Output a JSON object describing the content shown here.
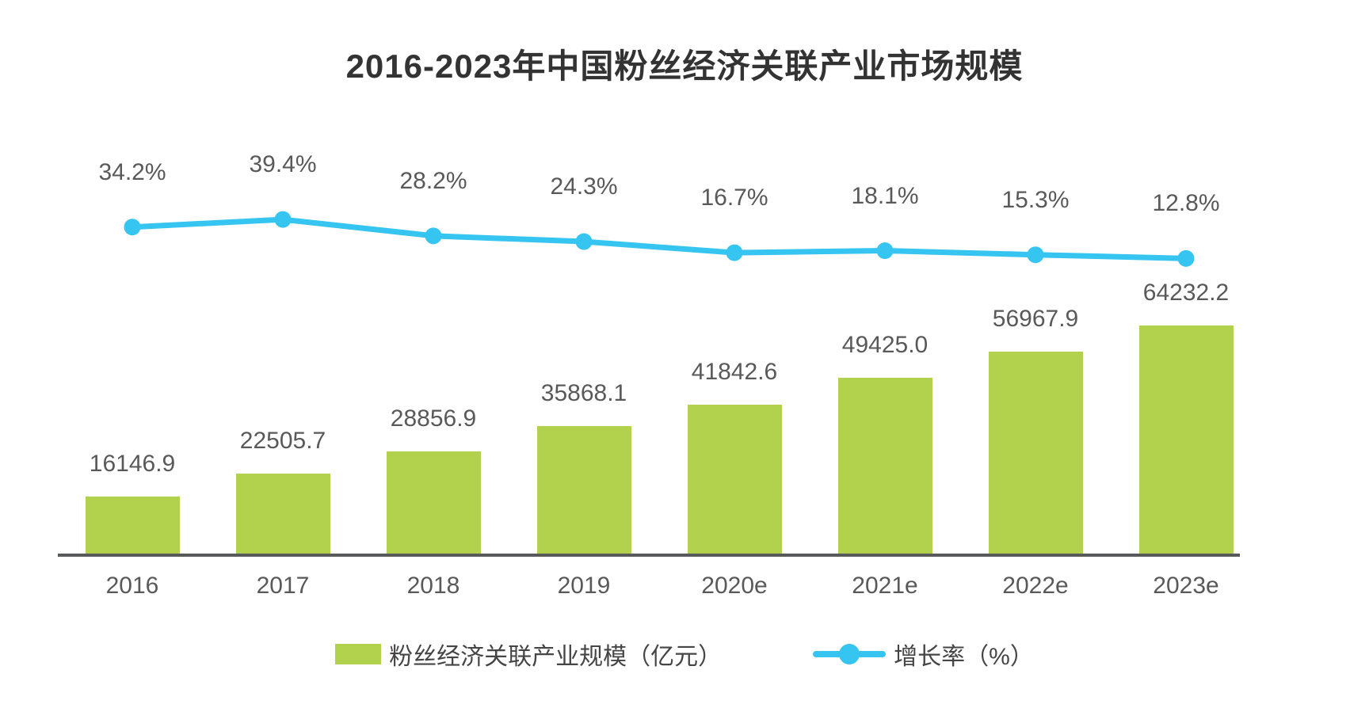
{
  "title": "2016-2023年中国粉丝经济关联产业市场规模",
  "colors": {
    "bar": "#b2d14d",
    "line": "#36c5f0",
    "label_text": "#595959",
    "title_text": "#333333",
    "axis": "#58595b"
  },
  "legend": [
    {
      "label": "粉丝经济关联产业规模（亿元）",
      "type": "bar"
    },
    {
      "label": "增长率（%）",
      "type": "line"
    }
  ],
  "chart_data": {
    "type": "bar",
    "subtype": "bar-line-combo",
    "title": "2016-2023年中国粉丝经济关联产业市场规模",
    "categories": [
      "2016",
      "2017",
      "2018",
      "2019",
      "2020e",
      "2021e",
      "2022e",
      "2023e"
    ],
    "series": [
      {
        "name": "粉丝经济关联产业规模（亿元）",
        "type": "bar",
        "color": "#b2d14d",
        "values": [
          16146.9,
          22505.7,
          28856.9,
          35868.1,
          41842.6,
          49425.0,
          56967.9,
          64232.2
        ]
      },
      {
        "name": "增长率（%）",
        "type": "line",
        "color": "#36c5f0",
        "values": [
          34.2,
          39.4,
          28.2,
          24.3,
          16.7,
          18.1,
          15.3,
          12.8
        ]
      }
    ],
    "value_labels_shown": true,
    "axes_hidden": true,
    "grid": false,
    "legend_position": "bottom",
    "xlabel": "",
    "ylabel": ""
  }
}
